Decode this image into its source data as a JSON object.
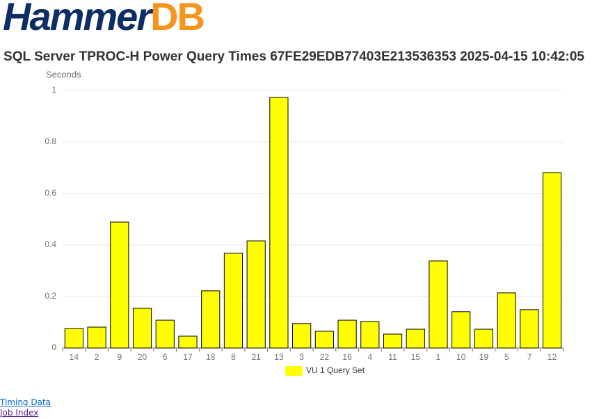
{
  "logo": {
    "parts": [
      "Hammer",
      "DB"
    ]
  },
  "chart_data": {
    "type": "bar",
    "title": "SQL Server TPROC-H Power Query Times 67FE29EDB77403E213536353 2025-04-15 10:42:05",
    "y_label": "Seconds",
    "categories": [
      "14",
      "2",
      "9",
      "20",
      "6",
      "17",
      "18",
      "8",
      "21",
      "13",
      "3",
      "22",
      "16",
      "4",
      "11",
      "15",
      "1",
      "10",
      "19",
      "5",
      "7",
      "12"
    ],
    "series": [
      {
        "name": "VU 1 Query Set",
        "color": "#ffff00",
        "values": [
          0.076,
          0.081,
          0.489,
          0.154,
          0.108,
          0.046,
          0.222,
          0.368,
          0.416,
          0.973,
          0.095,
          0.065,
          0.108,
          0.103,
          0.054,
          0.073,
          0.338,
          0.141,
          0.073,
          0.214,
          0.149,
          0.681
        ]
      }
    ],
    "ylim": [
      0,
      1
    ],
    "yticks": [
      0,
      0.2,
      0.4,
      0.6,
      0.8,
      1
    ],
    "grid": true
  },
  "links": [
    "Timing Data",
    "Job Index"
  ]
}
